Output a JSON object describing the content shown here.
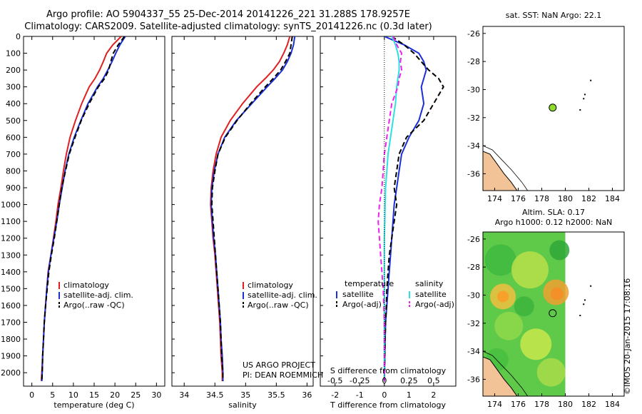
{
  "header": {
    "title_line1": "Argo profile: AO 5904337_55 25-Dec-2014 20141226_221 31.288S 178.9257E",
    "title_line2": "Climatology: CARS2009. Satellite-adjusted climatology: synTS_20141226.nc (0.3d later)"
  },
  "footer": {
    "project_line1": "US ARGO PROJECT",
    "project_line2": "PI: DEAN ROEMMICH",
    "credit": "©IMOS 20-Jan-2015 17:08:16"
  },
  "colors": {
    "climatology": "#e02020",
    "satellite": "#1a2fd6",
    "argo": "#000000",
    "sat_salinity": "#2fe0e0",
    "argo_salinity": "#ee22ee",
    "land": "#f2c396",
    "marker": "#8fdc2a"
  },
  "chart_data": [
    {
      "type": "line",
      "id": "temperature",
      "title": "",
      "xlabel": "temperature (deg C)",
      "ylabel": "",
      "xlim": [
        -2,
        32
      ],
      "ylim": [
        2080,
        0
      ],
      "xticks": [
        0,
        5,
        10,
        15,
        20,
        25,
        30
      ],
      "yticks": [
        0,
        100,
        200,
        300,
        400,
        500,
        600,
        700,
        800,
        900,
        1000,
        1100,
        1200,
        1300,
        1400,
        1500,
        1600,
        1700,
        1800,
        1900,
        2000
      ],
      "legend": [
        "climatology",
        "satellite-adj. clim.",
        "Argo(..raw -QC)"
      ],
      "series": [
        {
          "name": "climatology",
          "style": "solid",
          "color": "#e02020",
          "x": [
            21.5,
            19.5,
            18.0,
            17.2,
            16.3,
            15.2,
            13.8,
            12.0,
            10.5,
            9.2,
            8.3,
            7.6,
            7.0,
            6.3,
            5.8,
            5.2,
            4.6,
            3.9,
            3.6,
            3.3,
            3.0,
            2.8,
            2.6,
            2.4,
            2.3
          ],
          "y": [
            0,
            50,
            100,
            150,
            200,
            250,
            300,
            400,
            500,
            600,
            700,
            800,
            900,
            1000,
            1100,
            1200,
            1300,
            1400,
            1500,
            1600,
            1700,
            1800,
            1900,
            2000,
            2050
          ]
        },
        {
          "name": "satellite-adj. clim.",
          "style": "solid",
          "color": "#1a2fd6",
          "x": [
            22.5,
            21.2,
            20.2,
            19.3,
            18.3,
            17.2,
            15.8,
            13.5,
            11.8,
            10.2,
            8.9,
            8.0,
            7.3,
            6.6,
            6.0,
            5.3,
            4.6,
            4.0,
            3.6,
            3.3,
            3.0,
            2.8,
            2.6,
            2.5,
            2.4
          ],
          "y": [
            0,
            50,
            100,
            150,
            200,
            250,
            300,
            400,
            500,
            600,
            700,
            800,
            900,
            1000,
            1100,
            1200,
            1300,
            1400,
            1500,
            1600,
            1700,
            1800,
            1900,
            2000,
            2050
          ]
        },
        {
          "name": "Argo(..raw -QC)",
          "style": "dashed",
          "color": "#000000",
          "x": [
            22.3,
            20.8,
            19.6,
            19.0,
            18.5,
            17.5,
            16.0,
            13.8,
            11.9,
            10.4,
            9.0,
            8.1,
            7.2,
            6.6,
            6.0,
            5.4,
            4.7,
            4.1,
            3.7,
            3.3,
            3.0,
            2.8,
            2.6,
            2.5,
            2.4
          ],
          "y": [
            0,
            50,
            100,
            150,
            200,
            250,
            300,
            400,
            500,
            600,
            700,
            800,
            900,
            1000,
            1100,
            1200,
            1300,
            1400,
            1500,
            1600,
            1700,
            1800,
            1900,
            2000,
            2050
          ]
        }
      ]
    },
    {
      "type": "line",
      "id": "salinity",
      "title": "",
      "xlabel": "salinity",
      "ylabel": "",
      "xlim": [
        33.8,
        36.1
      ],
      "ylim": [
        2080,
        0
      ],
      "xticks": [
        34,
        34.5,
        35,
        35.5,
        36
      ],
      "legend": [
        "climatology",
        "satellite-adj. clim.",
        "Argo(..raw -QC)"
      ],
      "series": [
        {
          "name": "climatology",
          "style": "solid",
          "color": "#e02020",
          "x": [
            35.72,
            35.68,
            35.62,
            35.55,
            35.45,
            35.32,
            35.18,
            34.95,
            34.75,
            34.6,
            34.52,
            34.47,
            34.44,
            34.43,
            34.45,
            34.47,
            34.5,
            34.52,
            34.54,
            34.56,
            34.58,
            34.59,
            34.6,
            34.62,
            34.62
          ],
          "y": [
            0,
            50,
            100,
            150,
            200,
            250,
            300,
            400,
            500,
            600,
            700,
            800,
            900,
            1000,
            1100,
            1200,
            1300,
            1400,
            1500,
            1600,
            1700,
            1800,
            1900,
            2000,
            2050
          ]
        },
        {
          "name": "satellite-adj. clim.",
          "style": "solid",
          "color": "#1a2fd6",
          "x": [
            35.8,
            35.78,
            35.74,
            35.68,
            35.6,
            35.48,
            35.35,
            35.1,
            34.85,
            34.66,
            34.55,
            34.49,
            34.45,
            34.44,
            34.46,
            34.48,
            34.51,
            34.53,
            34.55,
            34.57,
            34.59,
            34.6,
            34.62,
            34.63,
            34.63
          ],
          "y": [
            0,
            50,
            100,
            150,
            200,
            250,
            300,
            400,
            500,
            600,
            700,
            800,
            900,
            1000,
            1100,
            1200,
            1300,
            1400,
            1500,
            1600,
            1700,
            1800,
            1900,
            2000,
            2050
          ]
        },
        {
          "name": "Argo(..raw -QC)",
          "style": "dashed",
          "color": "#000000",
          "x": [
            35.76,
            35.74,
            35.72,
            35.65,
            35.57,
            35.45,
            35.32,
            35.08,
            34.86,
            34.67,
            34.55,
            34.5,
            34.46,
            34.45,
            34.47,
            34.49,
            34.51,
            34.53,
            34.55,
            34.57,
            34.59,
            34.6,
            34.61,
            34.63,
            34.63
          ],
          "y": [
            0,
            50,
            100,
            150,
            200,
            250,
            300,
            400,
            500,
            600,
            700,
            800,
            900,
            1000,
            1100,
            1200,
            1300,
            1400,
            1500,
            1600,
            1700,
            1800,
            1900,
            2000,
            2050
          ]
        }
      ]
    },
    {
      "type": "line",
      "id": "difference",
      "title": "",
      "xlabel": "T difference from climatology",
      "xlabel_top": "S difference from climatology",
      "ylabel": "",
      "xlim": [
        -2.6,
        2.9
      ],
      "ylim": [
        2080,
        0
      ],
      "xticks": [
        -2,
        -1,
        0,
        1,
        2
      ],
      "xticklabels_s": [
        "-0.5",
        "-0.25",
        "0",
        "0.25",
        "0.5"
      ],
      "xticks_s_position": [
        -2,
        -1,
        0,
        1,
        2
      ],
      "legend_left": [
        "temperature",
        "satellite",
        "Argo(-adj)"
      ],
      "legend_right": [
        "salinity",
        "satellite",
        "Argo(-adj)"
      ],
      "series": [
        {
          "name": "T satellite",
          "style": "solid",
          "color": "#1a2fd6",
          "x": [
            0.0,
            0.8,
            1.4,
            1.6,
            1.7,
            1.6,
            1.5,
            1.6,
            1.4,
            1.0,
            0.7,
            0.6,
            0.5,
            0.4,
            0.35,
            0.3,
            0.25,
            0.2,
            0.15,
            0.1,
            0.05,
            0.03,
            0.02,
            0.0
          ],
          "y": [
            0,
            50,
            100,
            150,
            200,
            250,
            300,
            400,
            500,
            600,
            700,
            800,
            900,
            1000,
            1100,
            1200,
            1300,
            1400,
            1500,
            1600,
            1700,
            1800,
            1900,
            2050
          ]
        },
        {
          "name": "T Argo(-adj)",
          "style": "dashed",
          "color": "#000000",
          "x": [
            0.3,
            0.8,
            1.2,
            1.5,
            1.8,
            2.2,
            2.4,
            2.0,
            1.6,
            0.9,
            0.6,
            0.5,
            0.4,
            0.5,
            0.4,
            0.3,
            0.2,
            0.15,
            0.1,
            0.08,
            0.05,
            0.03,
            0.02,
            0.0
          ],
          "y": [
            0,
            50,
            100,
            150,
            200,
            250,
            300,
            400,
            500,
            600,
            700,
            800,
            900,
            1000,
            1100,
            1200,
            1300,
            1400,
            1500,
            1600,
            1700,
            1800,
            1900,
            2050
          ]
        },
        {
          "name": "S satellite",
          "style": "solid",
          "color": "#2fe0e0",
          "x": [
            0.3,
            0.45,
            0.55,
            0.6,
            0.6,
            0.55,
            0.5,
            0.45,
            0.35,
            0.25,
            0.15,
            0.1,
            0.05,
            0.03,
            0.02,
            0.0,
            0.0,
            0.0,
            0.0,
            0.0,
            0.0,
            0.0,
            0.0,
            0.0
          ],
          "y": [
            0,
            50,
            100,
            150,
            200,
            250,
            300,
            400,
            500,
            600,
            700,
            800,
            900,
            1000,
            1100,
            1200,
            1300,
            1400,
            1500,
            1600,
            1700,
            1800,
            1900,
            2050
          ]
        },
        {
          "name": "S Argo(-adj)",
          "style": "dashed",
          "color": "#ee22ee",
          "x": [
            0.35,
            0.5,
            0.7,
            0.65,
            0.7,
            0.6,
            0.55,
            0.3,
            0.2,
            0.1,
            0.0,
            -0.05,
            -0.1,
            -0.2,
            -0.25,
            -0.2,
            -0.15,
            -0.1,
            -0.05,
            -0.02,
            0.0,
            0.0,
            0.0,
            0.0
          ],
          "y": [
            0,
            50,
            100,
            150,
            200,
            250,
            300,
            400,
            500,
            600,
            700,
            800,
            900,
            1000,
            1100,
            1200,
            1300,
            1400,
            1500,
            1600,
            1700,
            1800,
            1900,
            2050
          ]
        }
      ]
    },
    {
      "type": "scatter",
      "id": "sst_map",
      "title": "sat. SST: NaN Argo: 22.1",
      "xlim": [
        173,
        185
      ],
      "ylim": [
        -37.2,
        -25.5
      ],
      "xticks": [
        174,
        176,
        178,
        180,
        182,
        184
      ],
      "yticks": [
        -26,
        -28,
        -30,
        -32,
        -34,
        -36
      ],
      "profile_location": {
        "lon": 178.9257,
        "lat": -31.288
      }
    },
    {
      "type": "heatmap",
      "id": "sla_map",
      "title_line1": "Altim. SLA: 0.17",
      "title_line2": "Argo h1000: 0.12 h2000: NaN",
      "xlim": [
        173,
        185
      ],
      "ylim": [
        -37.2,
        -25.5
      ],
      "xticks": [
        174,
        176,
        178,
        180,
        182,
        184
      ],
      "yticks": [
        -26,
        -28,
        -30,
        -32,
        -34,
        -36
      ],
      "data_extent_lon": [
        173,
        180
      ],
      "profile_location": {
        "lon": 178.9257,
        "lat": -31.288
      }
    }
  ]
}
